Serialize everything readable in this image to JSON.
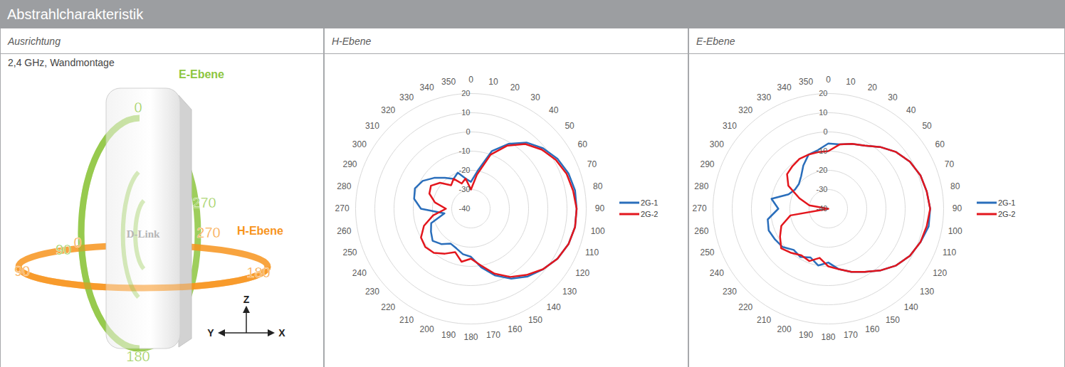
{
  "header": {
    "title": "Abstrahlcharakteristik"
  },
  "columns": [
    "Ausrichtung",
    "H-Ebene",
    "E-Ebene"
  ],
  "diagram": {
    "caption": "2,4 GHz, Wandmontage",
    "device": "D-Link",
    "e_plane": {
      "name": "E-Ebene",
      "color": "#8dc63f",
      "top": "0",
      "left": "90",
      "bottom": "180",
      "right": "270"
    },
    "h_plane": {
      "name": "H-Ebene",
      "color": "#f7941d",
      "back_left": "0",
      "left": "90",
      "right": "180",
      "back_right": "270"
    },
    "axes": {
      "up": "Z",
      "left": "Y",
      "right": "X"
    }
  },
  "chart_data": [
    {
      "type": "polar",
      "x": [
        0,
        10,
        20,
        30,
        40,
        50,
        60,
        70,
        80,
        90,
        100,
        110,
        120,
        130,
        140,
        150,
        160,
        170,
        180,
        190,
        200,
        210,
        220,
        230,
        240,
        250,
        260,
        270,
        280,
        290,
        300,
        310,
        320,
        330,
        340,
        350
      ],
      "xticks": [
        0,
        10,
        20,
        30,
        40,
        50,
        60,
        70,
        80,
        90,
        100,
        110,
        120,
        130,
        140,
        150,
        160,
        170,
        180,
        190,
        200,
        210,
        220,
        230,
        240,
        250,
        260,
        270,
        280,
        290,
        300,
        310,
        320,
        330,
        340,
        350
      ],
      "ylim": [
        -40,
        20
      ],
      "yticks": [
        -40,
        -30,
        -20,
        -10,
        0,
        10,
        20
      ],
      "grid": true,
      "legend": "right",
      "series": [
        {
          "name": "2G-1",
          "color": "#2a6ebb",
          "values": [
            -26,
            -20,
            -8,
            -1,
            5,
            9,
            12,
            14,
            15,
            15,
            15,
            14,
            12,
            9,
            6,
            2,
            -3,
            -9,
            -15,
            -16,
            -18,
            -19,
            -16,
            -14,
            -16,
            -18,
            -26,
            -14,
            -10,
            -9,
            -11,
            -15,
            -19,
            -22,
            -20,
            -24
          ]
        },
        {
          "name": "2G-2",
          "color": "#e3161d",
          "values": [
            -30,
            -22,
            -10,
            -2,
            4,
            8,
            11,
            13,
            14,
            15,
            15,
            14,
            12,
            9,
            5,
            1,
            -4,
            -10,
            -14,
            -12,
            -16,
            -13,
            -10,
            -9,
            -10,
            -14,
            -20,
            -27,
            -21,
            -17,
            -16,
            -19,
            -24,
            -22,
            -26,
            -24
          ]
        }
      ]
    },
    {
      "type": "polar",
      "x": [
        0,
        10,
        20,
        30,
        40,
        50,
        60,
        70,
        80,
        90,
        100,
        110,
        120,
        130,
        140,
        150,
        160,
        170,
        180,
        190,
        200,
        210,
        220,
        230,
        240,
        250,
        260,
        270,
        280,
        290,
        300,
        310,
        320,
        330,
        340,
        350
      ],
      "xticks": [
        0,
        10,
        20,
        30,
        40,
        50,
        60,
        70,
        80,
        90,
        100,
        110,
        120,
        130,
        140,
        150,
        160,
        170,
        180,
        190,
        200,
        210,
        220,
        230,
        240,
        250,
        260,
        270,
        280,
        290,
        300,
        310,
        320,
        330,
        340,
        350
      ],
      "ylim": [
        -40,
        20
      ],
      "yticks": [
        -40,
        -30,
        -20,
        -10,
        0,
        10,
        20
      ],
      "grid": true,
      "legend": "right",
      "series": [
        {
          "name": "2G-1",
          "color": "#2a6ebb",
          "values": [
            -6,
            -6,
            -4,
            -2,
            2,
            6,
            9,
            11,
            12,
            13,
            13,
            11,
            9,
            6,
            2,
            -2,
            -5,
            -8,
            -12,
            -10,
            -13,
            -11,
            -12,
            -9,
            -8,
            -7,
            -8,
            -14,
            -10,
            -18,
            -20,
            -20,
            -18,
            -14,
            -10,
            -9
          ]
        },
        {
          "name": "2G-2",
          "color": "#e3161d",
          "values": [
            -10,
            -6,
            -4,
            -2,
            2,
            6,
            9,
            11,
            12,
            13,
            12,
            11,
            9,
            6,
            2,
            -2,
            -5,
            -8,
            -10,
            -14,
            -11,
            -12,
            -10,
            -8,
            -11,
            -14,
            -20,
            -40,
            -30,
            -24,
            -16,
            -12,
            -11,
            -10,
            -10,
            -10
          ]
        }
      ]
    }
  ]
}
